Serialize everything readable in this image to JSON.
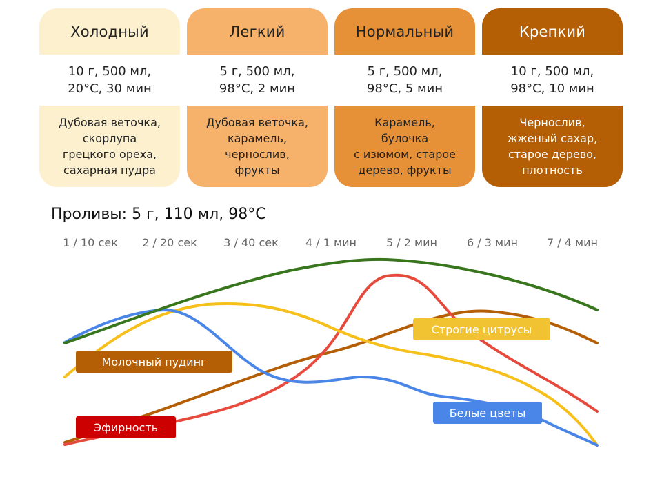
{
  "cards": [
    {
      "name_lines": [
        "Холодный"
      ],
      "param_lines": [
        "10 г, 500 мл,",
        "20°C, 30 мин"
      ],
      "note_lines": [
        "Дубовая веточка,",
        "скорлупа",
        "грецкого ореха,",
        "сахарная пудра"
      ],
      "bg": "#fdf0cf",
      "fg": "#222222"
    },
    {
      "name_lines": [
        "Легкий"
      ],
      "param_lines": [
        "5 г, 500 мл,",
        "98°C, 2 мин"
      ],
      "note_lines": [
        "Дубовая веточка,",
        "карамель,",
        "чернослив,",
        "фрукты"
      ],
      "bg": "#f6b26b",
      "fg": "#222222"
    },
    {
      "name_lines": [
        "Нормальный"
      ],
      "param_lines": [
        "5 г, 500 мл,",
        "98°C, 5 мин"
      ],
      "note_lines": [
        "Карамель,",
        "булочка",
        "с изюмом, старое",
        "дерево, фрукты"
      ],
      "bg": "#e69138",
      "fg": "#222222"
    },
    {
      "name_lines": [
        "Крепкий"
      ],
      "param_lines": [
        "10 г, 500 мл,",
        "98°C, 10 мин"
      ],
      "note_lines": [
        "Чернослив,",
        "жженый сахар,",
        "старое дерево,",
        "плотность"
      ],
      "bg": "#b45f06",
      "fg": "#ffffff"
    }
  ],
  "infusions_title": "Проливы: 5 г, 110 мл, 98°C",
  "steps": [
    "1 / 10 сек",
    "2 / 20 сек",
    "3 / 40 сек",
    "4 / 1 мин",
    "5 / 2 мин",
    "6 / 3 мин",
    "7 / 4 мин"
  ],
  "series": [
    {
      "name": "Молочный пудинг",
      "color": "#b45f06",
      "label_color": "#b45f06"
    },
    {
      "name": "Эфирность",
      "color": "#e64a3c",
      "label_color": "#cc0000"
    },
    {
      "name": "Строгие цитрусы",
      "color": "#f6bf19",
      "label_color": "#f1c232"
    },
    {
      "name": "Белые цветы",
      "color": "#4a86e8",
      "label_color": "#4a86e8"
    },
    {
      "name": "",
      "color": "#38761d"
    }
  ]
}
